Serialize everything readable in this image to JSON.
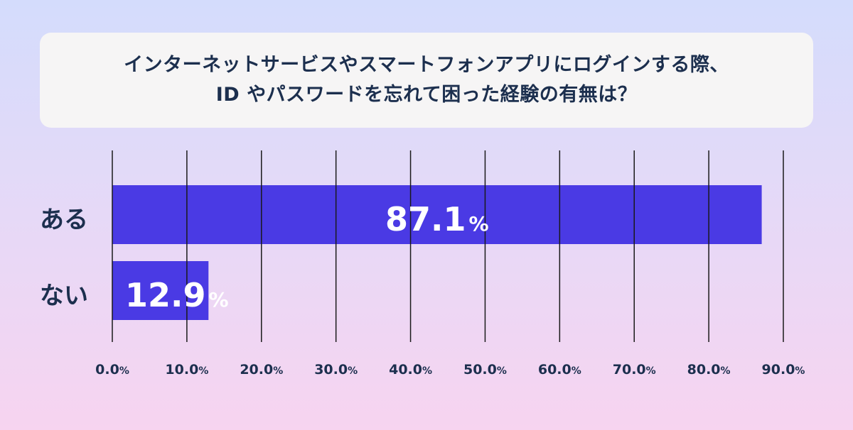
{
  "header": {
    "title_line1": "インターネットサービスやスマートフォンアプリにログインする際、",
    "title_line2": "ID やパスワードを忘れて困った経験の有無は？"
  },
  "colors": {
    "bar": "#4a3ae4",
    "text": "#1c2f4e",
    "grid": "#1a1a1a"
  },
  "chart_data": {
    "type": "bar",
    "orientation": "horizontal",
    "title": "インターネットサービスやスマートフォンアプリにログインする際、ID やパスワードを忘れて困った経験の有無は？",
    "categories": [
      "ある",
      "ない"
    ],
    "values": [
      87.1,
      12.9
    ],
    "value_labels": [
      "87.1",
      "12.9"
    ],
    "value_unit": "%",
    "xlim": [
      0,
      90
    ],
    "xticks": [
      "0.0",
      "10.0",
      "20.0",
      "30.0",
      "40.0",
      "50.0",
      "60.0",
      "70.0",
      "80.0",
      "90.0"
    ],
    "tick_unit": "%",
    "grid": true,
    "legend": false
  }
}
